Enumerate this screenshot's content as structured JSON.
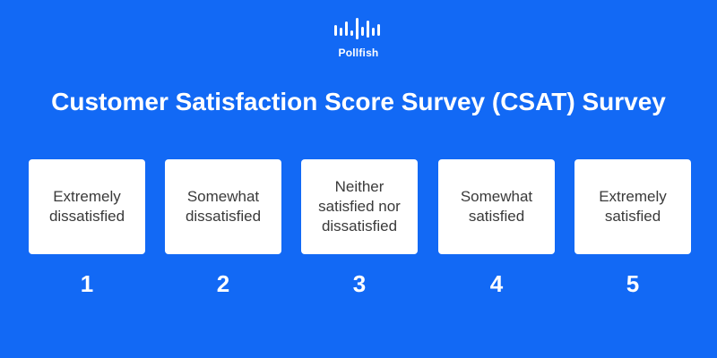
{
  "brand": {
    "name": "Pollfish",
    "icon": "pollfish-bars-icon"
  },
  "title": "Customer Satisfaction Score Survey (CSAT) Survey",
  "colors": {
    "background": "#1269f5",
    "card": "#ffffff",
    "card_text": "#3a3a3a",
    "text": "#ffffff"
  },
  "options": [
    {
      "label": "Extremely dissatisfied",
      "value": "1"
    },
    {
      "label": "Somewhat dissatisfied",
      "value": "2"
    },
    {
      "label": "Neither satisfied nor dissatisfied",
      "value": "3"
    },
    {
      "label": "Somewhat satisfied",
      "value": "4"
    },
    {
      "label": "Extremely satisfied",
      "value": "5"
    }
  ]
}
